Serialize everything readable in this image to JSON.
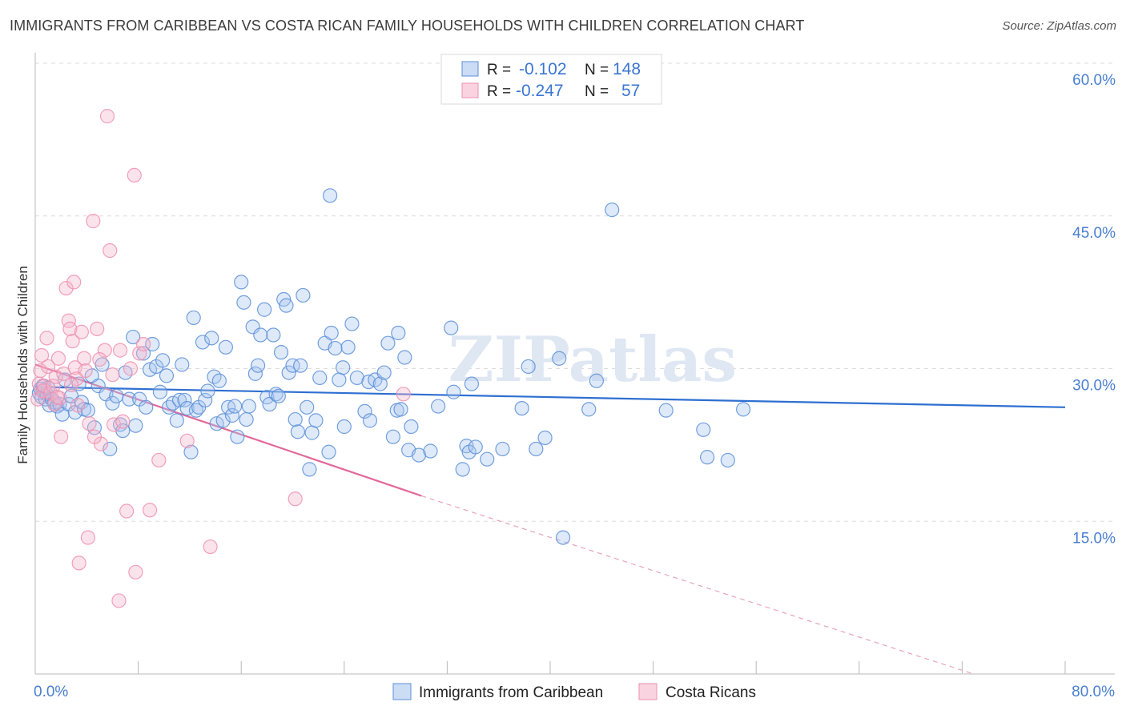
{
  "title": "IMMIGRANTS FROM CARIBBEAN VS COSTA RICAN FAMILY HOUSEHOLDS WITH CHILDREN CORRELATION CHART",
  "source": "Source: ZipAtlas.com",
  "watermark": "ZIPatlas",
  "legend": {
    "rows": [
      {
        "r_label": "R =",
        "r_value": "-0.102",
        "n_label": "N =",
        "n_value": "148",
        "color": "#a8c5ee"
      },
      {
        "r_label": "R =",
        "r_value": "-0.247",
        "n_label": "N =",
        "n_value": "57",
        "color": "#f5b6cb"
      }
    ]
  },
  "bottom_legend": [
    {
      "label": "Immigrants from Caribbean",
      "color": "#a8c5ee"
    },
    {
      "label": "Costa Ricans",
      "color": "#f5b6cb"
    }
  ],
  "chart_data": {
    "type": "scatter",
    "title": "IMMIGRANTS FROM CARIBBEAN VS COSTA RICAN FAMILY HOUSEHOLDS WITH CHILDREN CORRELATION CHART",
    "xlabel": "",
    "ylabel": "Family Households with Children",
    "xlim": [
      0,
      80
    ],
    "ylim": [
      0,
      60
    ],
    "x_tick_labels": [
      "0.0%",
      "80.0%"
    ],
    "y_tick_labels": [
      "15.0%",
      "30.0%",
      "45.0%",
      "60.0%"
    ],
    "y_ticks": [
      15,
      30,
      45,
      60
    ],
    "grid": true,
    "series": [
      {
        "name": "Immigrants from Caribbean",
        "color": "#5b8fd8",
        "fill": "#a8c5ee",
        "trend": {
          "x": [
            0,
            80
          ],
          "y": [
            28.2,
            26.2
          ],
          "style": "solid"
        },
        "points": [
          [
            0.3,
            27.6
          ],
          [
            0.4,
            28.0
          ],
          [
            0.5,
            27.2
          ],
          [
            0.6,
            28.3
          ],
          [
            0.7,
            27.9
          ],
          [
            0.8,
            27.0
          ],
          [
            0.9,
            27.5
          ],
          [
            1.0,
            28.1
          ],
          [
            1.1,
            26.4
          ],
          [
            1.3,
            27.0
          ],
          [
            1.5,
            26.7
          ],
          [
            1.7,
            26.3
          ],
          [
            1.9,
            26.5
          ],
          [
            2.1,
            25.5
          ],
          [
            2.3,
            28.9
          ],
          [
            2.6,
            26.5
          ],
          [
            2.8,
            27.3
          ],
          [
            3.1,
            25.7
          ],
          [
            3.4,
            28.5
          ],
          [
            3.6,
            26.7
          ],
          [
            3.8,
            26.0
          ],
          [
            4.1,
            25.9
          ],
          [
            4.4,
            29.3
          ],
          [
            4.6,
            24.2
          ],
          [
            4.9,
            28.3
          ],
          [
            5.2,
            30.4
          ],
          [
            5.5,
            27.5
          ],
          [
            5.8,
            22.1
          ],
          [
            6.0,
            26.6
          ],
          [
            6.3,
            27.3
          ],
          [
            6.6,
            24.5
          ],
          [
            6.8,
            23.9
          ],
          [
            7.0,
            29.6
          ],
          [
            7.3,
            27.0
          ],
          [
            7.6,
            33.1
          ],
          [
            7.8,
            24.4
          ],
          [
            8.1,
            27.0
          ],
          [
            8.4,
            31.5
          ],
          [
            8.6,
            26.2
          ],
          [
            8.9,
            29.9
          ],
          [
            9.1,
            32.4
          ],
          [
            9.4,
            30.2
          ],
          [
            9.7,
            27.7
          ],
          [
            9.9,
            30.8
          ],
          [
            10.2,
            29.3
          ],
          [
            10.4,
            26.2
          ],
          [
            10.7,
            26.6
          ],
          [
            11.0,
            24.9
          ],
          [
            11.2,
            26.9
          ],
          [
            11.4,
            30.4
          ],
          [
            11.6,
            26.9
          ],
          [
            11.8,
            26.1
          ],
          [
            12.1,
            21.8
          ],
          [
            12.3,
            35.0
          ],
          [
            12.5,
            25.9
          ],
          [
            12.7,
            26.2
          ],
          [
            13.0,
            32.6
          ],
          [
            13.2,
            26.9
          ],
          [
            13.4,
            27.8
          ],
          [
            13.7,
            33.0
          ],
          [
            13.9,
            29.2
          ],
          [
            14.1,
            24.6
          ],
          [
            14.3,
            28.8
          ],
          [
            14.6,
            24.9
          ],
          [
            14.8,
            32.1
          ],
          [
            15.0,
            26.2
          ],
          [
            15.3,
            25.4
          ],
          [
            15.5,
            26.3
          ],
          [
            15.7,
            23.3
          ],
          [
            16.0,
            38.5
          ],
          [
            16.2,
            36.5
          ],
          [
            16.4,
            25.0
          ],
          [
            16.6,
            26.3
          ],
          [
            16.9,
            34.1
          ],
          [
            17.1,
            29.5
          ],
          [
            17.3,
            30.3
          ],
          [
            17.5,
            33.3
          ],
          [
            17.8,
            35.8
          ],
          [
            18.0,
            27.2
          ],
          [
            18.2,
            26.5
          ],
          [
            18.5,
            33.3
          ],
          [
            18.7,
            27.5
          ],
          [
            18.9,
            27.3
          ],
          [
            19.1,
            31.6
          ],
          [
            19.3,
            36.8
          ],
          [
            19.5,
            36.2
          ],
          [
            19.7,
            29.6
          ],
          [
            20.0,
            30.3
          ],
          [
            20.2,
            25.0
          ],
          [
            20.4,
            23.8
          ],
          [
            20.6,
            30.3
          ],
          [
            20.8,
            37.2
          ],
          [
            21.1,
            26.2
          ],
          [
            21.3,
            20.1
          ],
          [
            21.5,
            23.7
          ],
          [
            21.8,
            24.9
          ],
          [
            22.1,
            29.1
          ],
          [
            22.5,
            32.5
          ],
          [
            22.8,
            21.8
          ],
          [
            22.9,
            47.0
          ],
          [
            23.0,
            33.5
          ],
          [
            23.3,
            32.0
          ],
          [
            23.6,
            28.9
          ],
          [
            23.9,
            30.1
          ],
          [
            24.0,
            24.3
          ],
          [
            24.3,
            32.1
          ],
          [
            24.6,
            34.4
          ],
          [
            25.0,
            29.1
          ],
          [
            25.6,
            25.8
          ],
          [
            25.9,
            28.7
          ],
          [
            26.0,
            24.9
          ],
          [
            26.4,
            28.9
          ],
          [
            26.8,
            28.5
          ],
          [
            27.1,
            29.6
          ],
          [
            27.4,
            32.5
          ],
          [
            27.8,
            23.3
          ],
          [
            28.1,
            25.9
          ],
          [
            28.2,
            33.5
          ],
          [
            28.4,
            26.0
          ],
          [
            28.7,
            31.1
          ],
          [
            29.0,
            22.0
          ],
          [
            29.2,
            24.3
          ],
          [
            29.8,
            21.5
          ],
          [
            30.7,
            21.9
          ],
          [
            31.3,
            26.3
          ],
          [
            32.3,
            34.0
          ],
          [
            32.5,
            27.7
          ],
          [
            33.2,
            20.1
          ],
          [
            33.5,
            22.4
          ],
          [
            33.7,
            21.8
          ],
          [
            33.9,
            28.5
          ],
          [
            34.2,
            22.3
          ],
          [
            35.1,
            21.1
          ],
          [
            36.3,
            22.1
          ],
          [
            37.8,
            26.1
          ],
          [
            38.3,
            30.2
          ],
          [
            38.9,
            22.1
          ],
          [
            39.6,
            23.2
          ],
          [
            40.7,
            31.0
          ],
          [
            41.0,
            13.4
          ],
          [
            43.0,
            26.0
          ],
          [
            43.6,
            28.8
          ],
          [
            44.8,
            45.6
          ],
          [
            49.0,
            25.9
          ],
          [
            51.9,
            24.0
          ],
          [
            52.2,
            21.3
          ],
          [
            53.8,
            21.0
          ],
          [
            55.0,
            26.0
          ]
        ]
      },
      {
        "name": "Costa Ricans",
        "color": "#ee8fb0",
        "fill": "#f5b6cb",
        "trend": {
          "x": [
            0,
            30
          ],
          "y": [
            30.4,
            17.5
          ],
          "style": "solid",
          "dashed_to": [
            80,
            -2.9
          ]
        },
        "points": [
          [
            0.2,
            27.0
          ],
          [
            0.3,
            28.5
          ],
          [
            0.4,
            29.8
          ],
          [
            0.5,
            31.3
          ],
          [
            0.6,
            27.8
          ],
          [
            0.7,
            28.3
          ],
          [
            0.9,
            33.0
          ],
          [
            1.0,
            30.2
          ],
          [
            1.2,
            27.6
          ],
          [
            1.4,
            28.3
          ],
          [
            1.5,
            26.5
          ],
          [
            1.6,
            29.2
          ],
          [
            1.8,
            31.0
          ],
          [
            1.9,
            27.1
          ],
          [
            2.0,
            23.3
          ],
          [
            2.2,
            29.5
          ],
          [
            2.4,
            37.9
          ],
          [
            2.6,
            34.7
          ],
          [
            2.7,
            33.9
          ],
          [
            2.9,
            32.7
          ],
          [
            3.0,
            38.5
          ],
          [
            3.1,
            30.1
          ],
          [
            3.3,
            26.4
          ],
          [
            3.4,
            10.9
          ],
          [
            3.6,
            33.6
          ],
          [
            3.8,
            31.0
          ],
          [
            3.9,
            29.8
          ],
          [
            4.1,
            13.4
          ],
          [
            4.2,
            24.6
          ],
          [
            4.5,
            44.5
          ],
          [
            4.8,
            33.9
          ],
          [
            5.1,
            22.6
          ],
          [
            5.4,
            31.8
          ],
          [
            5.6,
            54.8
          ],
          [
            5.8,
            41.6
          ],
          [
            6.0,
            29.4
          ],
          [
            6.1,
            24.5
          ],
          [
            6.5,
            7.2
          ],
          [
            6.6,
            31.8
          ],
          [
            6.8,
            24.8
          ],
          [
            7.1,
            16.0
          ],
          [
            7.4,
            30.0
          ],
          [
            7.7,
            49.0
          ],
          [
            7.8,
            10.0
          ],
          [
            8.1,
            31.5
          ],
          [
            8.4,
            32.4
          ],
          [
            8.9,
            16.1
          ],
          [
            9.6,
            21.0
          ],
          [
            11.8,
            22.9
          ],
          [
            13.6,
            12.5
          ],
          [
            1.7,
            27.2
          ],
          [
            3.2,
            29.0
          ],
          [
            2.8,
            28.4
          ],
          [
            4.6,
            23.3
          ],
          [
            5.0,
            30.9
          ],
          [
            20.2,
            17.2
          ],
          [
            28.6,
            27.5
          ]
        ]
      }
    ]
  }
}
